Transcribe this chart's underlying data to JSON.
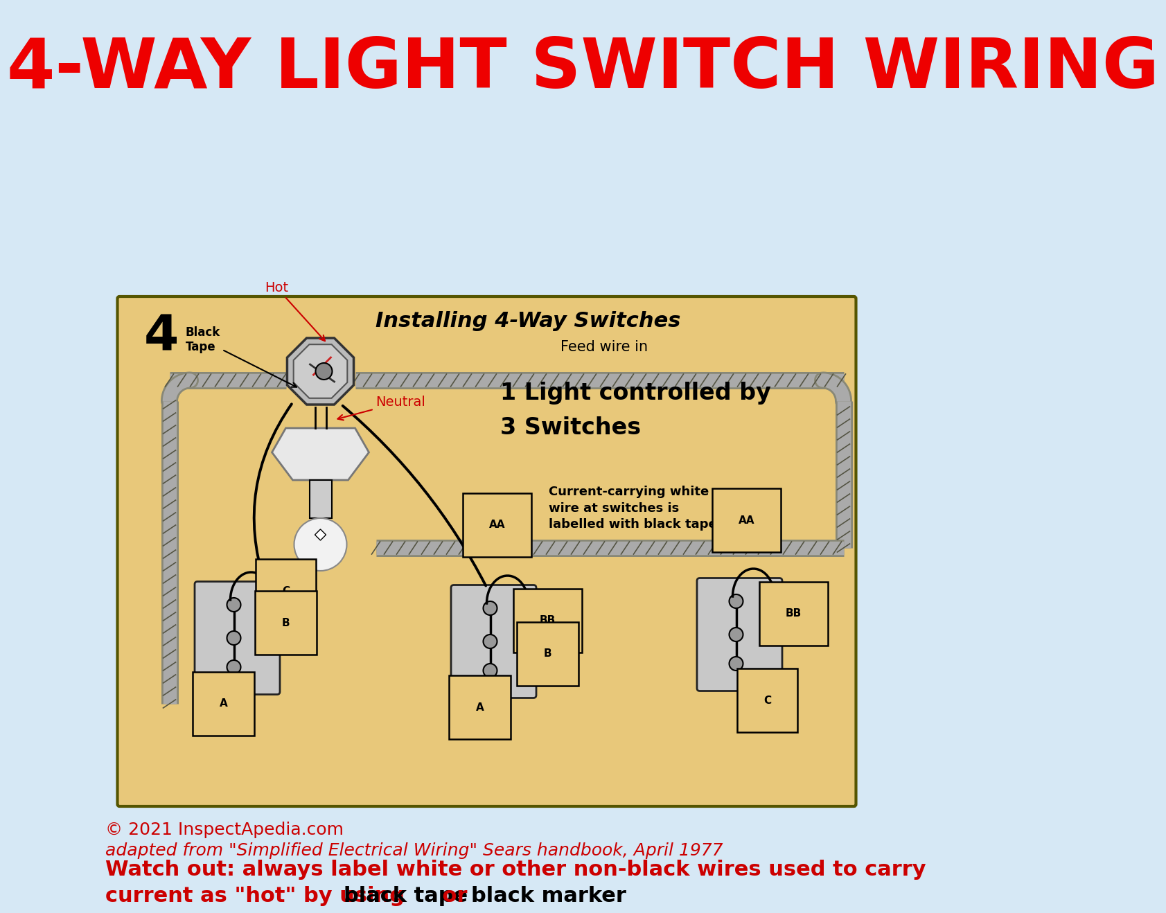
{
  "title": "4-WAY LIGHT SWITCH WIRING",
  "title_color": "#EE0000",
  "title_fontsize": 72,
  "bg_color": "#D6E8F5",
  "diagram_bg": "#E8C87A",
  "copyright_line1": "© 2021 InspectApedia.com",
  "copyright_line2": "adapted from \"Simplified Electrical Wiring\" Sears handbook, April 1977",
  "copyright_color": "#CC0000",
  "copyright_fontsize": 18,
  "watchout_line1": "Watch out: always label white or other non-black wires used to carry",
  "watchout_line2_prefix": "current as \"hot\" by using ",
  "watchout_line2_bold": "black tape",
  "watchout_line2_mid": " or ",
  "watchout_line2_bold2": "black marker",
  "watchout_color": "#CC0000",
  "watchout_black_color": "#000000",
  "watchout_fontsize": 22,
  "diagram_title": "Installing 4-Way Switches",
  "diagram_subtitle": "Feed wire in",
  "diagram_label_large_1": "1 Light controlled by",
  "diagram_label_large_2": "3 Switches",
  "diagram_note": "Current-carrying white\nwire at switches is\nlabelled with black tape",
  "label_hot": "Hot",
  "label_neutral": "Neutral",
  "label_black_tape": "Black\nTape",
  "number4": "4"
}
